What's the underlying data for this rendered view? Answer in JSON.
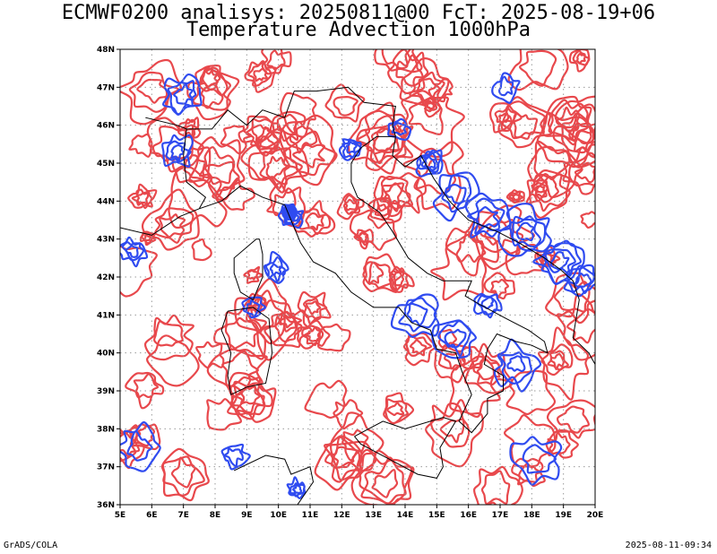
{
  "title_line1": "ECMWF0200 analisys: 20250811@00 FcT: 2025-08-19+06",
  "title_line2": "Temperature Advection 1000hPa",
  "footer_left": "GrADS/COLA",
  "footer_right": "2025-08-11-09:34",
  "colors": {
    "positive_contour": "#e8484c",
    "negative_contour": "#2f4bf0",
    "coastline": "#000000",
    "grid": "#9a9a9a"
  },
  "map": {
    "lon_range": [
      5,
      20
    ],
    "lat_range": [
      36,
      48
    ],
    "lon_ticks": [
      "5E",
      "6E",
      "7E",
      "8E",
      "9E",
      "10E",
      "11E",
      "12E",
      "13E",
      "14E",
      "15E",
      "16E",
      "17E",
      "18E",
      "19E",
      "20E"
    ],
    "lat_ticks": [
      "36N",
      "37N",
      "38N",
      "39N",
      "40N",
      "41N",
      "42N",
      "43N",
      "44N",
      "45N",
      "46N",
      "47N",
      "48N"
    ],
    "gridlines": "dotted",
    "region": "Italy and surrounding seas"
  }
}
